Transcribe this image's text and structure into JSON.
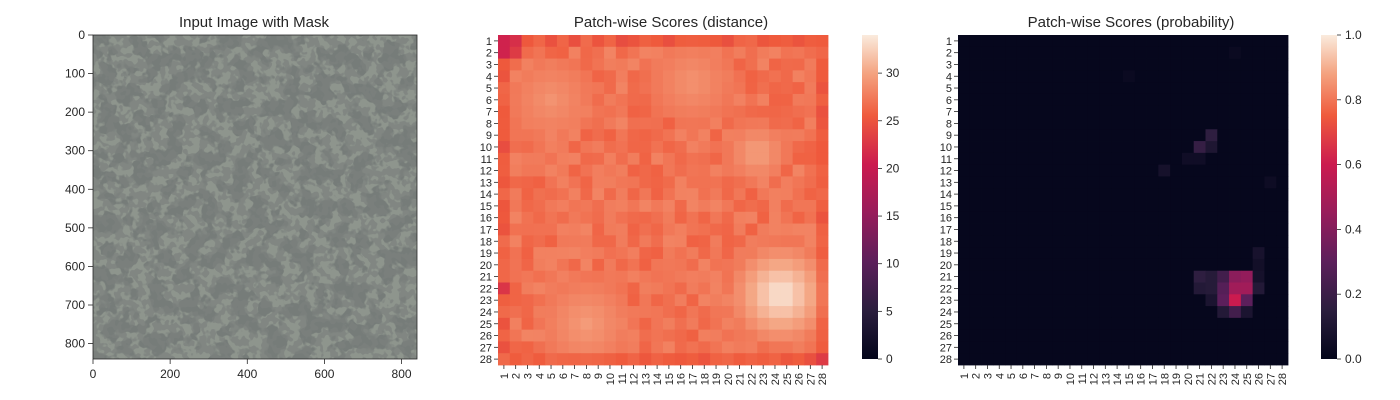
{
  "chart_data": [
    {
      "type": "image",
      "title": "Input Image with Mask",
      "xlim": [
        0,
        840
      ],
      "ylim": [
        840,
        0
      ],
      "xticks": [
        0,
        200,
        400,
        600,
        800
      ],
      "yticks": [
        0,
        100,
        200,
        300,
        400,
        500,
        600,
        700,
        800
      ],
      "colors": {
        "background": "#8e958d",
        "speckle": "#2f3231"
      }
    },
    {
      "type": "heatmap",
      "title": "Patch-wise Scores (distance)",
      "xticks": [
        "1",
        "2",
        "3",
        "4",
        "5",
        "6",
        "7",
        "8",
        "9",
        "10",
        "11",
        "12",
        "13",
        "14",
        "15",
        "16",
        "17",
        "18",
        "19",
        "20",
        "21",
        "22",
        "23",
        "24",
        "25",
        "26",
        "27",
        "28"
      ],
      "yticks": [
        "1",
        "2",
        "3",
        "4",
        "5",
        "6",
        "7",
        "8",
        "9",
        "10",
        "11",
        "12",
        "13",
        "14",
        "15",
        "16",
        "17",
        "18",
        "19",
        "20",
        "21",
        "22",
        "23",
        "24",
        "25",
        "26",
        "27",
        "28"
      ],
      "colorbar": {
        "min": 0,
        "max": 34,
        "ticks": [
          0,
          5,
          10,
          15,
          20,
          25,
          30
        ]
      },
      "base_value": 27,
      "hot_regions": [
        {
          "row": 22.5,
          "col": 24.5,
          "radius": 2.6,
          "peak": 34
        },
        {
          "row": 10.5,
          "col": 22.5,
          "radius": 1.6,
          "peak": 30
        },
        {
          "row": 4.5,
          "col": 17,
          "radius": 2.2,
          "peak": 29
        },
        {
          "row": 25,
          "col": 8,
          "radius": 2.4,
          "peak": 29.5
        },
        {
          "row": 6,
          "col": 5,
          "radius": 2.2,
          "peak": 29
        }
      ],
      "low_cells": [
        {
          "row": 1,
          "col": 1,
          "value": 21
        },
        {
          "row": 1,
          "col": 2,
          "value": 22
        },
        {
          "row": 2,
          "col": 1,
          "value": 21
        },
        {
          "row": 2,
          "col": 2,
          "value": 23
        },
        {
          "row": 22,
          "col": 1,
          "value": 22.5
        },
        {
          "row": 28,
          "col": 28,
          "value": 23
        }
      ]
    },
    {
      "type": "heatmap",
      "title": "Patch-wise Scores (probability)",
      "xticks": [
        "1",
        "2",
        "3",
        "4",
        "5",
        "6",
        "7",
        "8",
        "9",
        "10",
        "11",
        "12",
        "13",
        "14",
        "15",
        "16",
        "17",
        "18",
        "19",
        "20",
        "21",
        "22",
        "23",
        "24",
        "25",
        "26",
        "27",
        "28"
      ],
      "yticks": [
        "1",
        "2",
        "3",
        "4",
        "5",
        "6",
        "7",
        "8",
        "9",
        "10",
        "11",
        "12",
        "13",
        "14",
        "15",
        "16",
        "17",
        "18",
        "19",
        "20",
        "21",
        "22",
        "23",
        "24",
        "25",
        "26",
        "27",
        "28"
      ],
      "colorbar": {
        "min": 0,
        "max": 1,
        "ticks": [
          "0.0",
          "0.2",
          "0.4",
          "0.6",
          "0.8",
          "1.0"
        ]
      },
      "cells": [
        {
          "row": 23,
          "col": 24,
          "value": 0.6
        },
        {
          "row": 22,
          "col": 24,
          "value": 0.48
        },
        {
          "row": 22,
          "col": 25,
          "value": 0.48
        },
        {
          "row": 21,
          "col": 24,
          "value": 0.42
        },
        {
          "row": 21,
          "col": 25,
          "value": 0.44
        },
        {
          "row": 23,
          "col": 23,
          "value": 0.3
        },
        {
          "row": 22,
          "col": 23,
          "value": 0.28
        },
        {
          "row": 23,
          "col": 25,
          "value": 0.3
        },
        {
          "row": 21,
          "col": 23,
          "value": 0.22
        },
        {
          "row": 24,
          "col": 24,
          "value": 0.22
        },
        {
          "row": 21,
          "col": 21,
          "value": 0.16
        },
        {
          "row": 22,
          "col": 21,
          "value": 0.12
        },
        {
          "row": 21,
          "col": 22,
          "value": 0.13
        },
        {
          "row": 22,
          "col": 22,
          "value": 0.13
        },
        {
          "row": 23,
          "col": 22,
          "value": 0.09
        },
        {
          "row": 24,
          "col": 23,
          "value": 0.12
        },
        {
          "row": 24,
          "col": 25,
          "value": 0.09
        },
        {
          "row": 22,
          "col": 26,
          "value": 0.12
        },
        {
          "row": 21,
          "col": 26,
          "value": 0.07
        },
        {
          "row": 20,
          "col": 26,
          "value": 0.06
        },
        {
          "row": 19,
          "col": 26,
          "value": 0.08
        },
        {
          "row": 10,
          "col": 21,
          "value": 0.18
        },
        {
          "row": 9,
          "col": 22,
          "value": 0.16
        },
        {
          "row": 10,
          "col": 22,
          "value": 0.1
        },
        {
          "row": 11,
          "col": 21,
          "value": 0.05
        },
        {
          "row": 11,
          "col": 20,
          "value": 0.05
        },
        {
          "row": 12,
          "col": 18,
          "value": 0.07
        },
        {
          "row": 13,
          "col": 27,
          "value": 0.04
        },
        {
          "row": 4,
          "col": 15,
          "value": 0.03
        },
        {
          "row": 2,
          "col": 24,
          "value": 0.03
        }
      ]
    }
  ]
}
